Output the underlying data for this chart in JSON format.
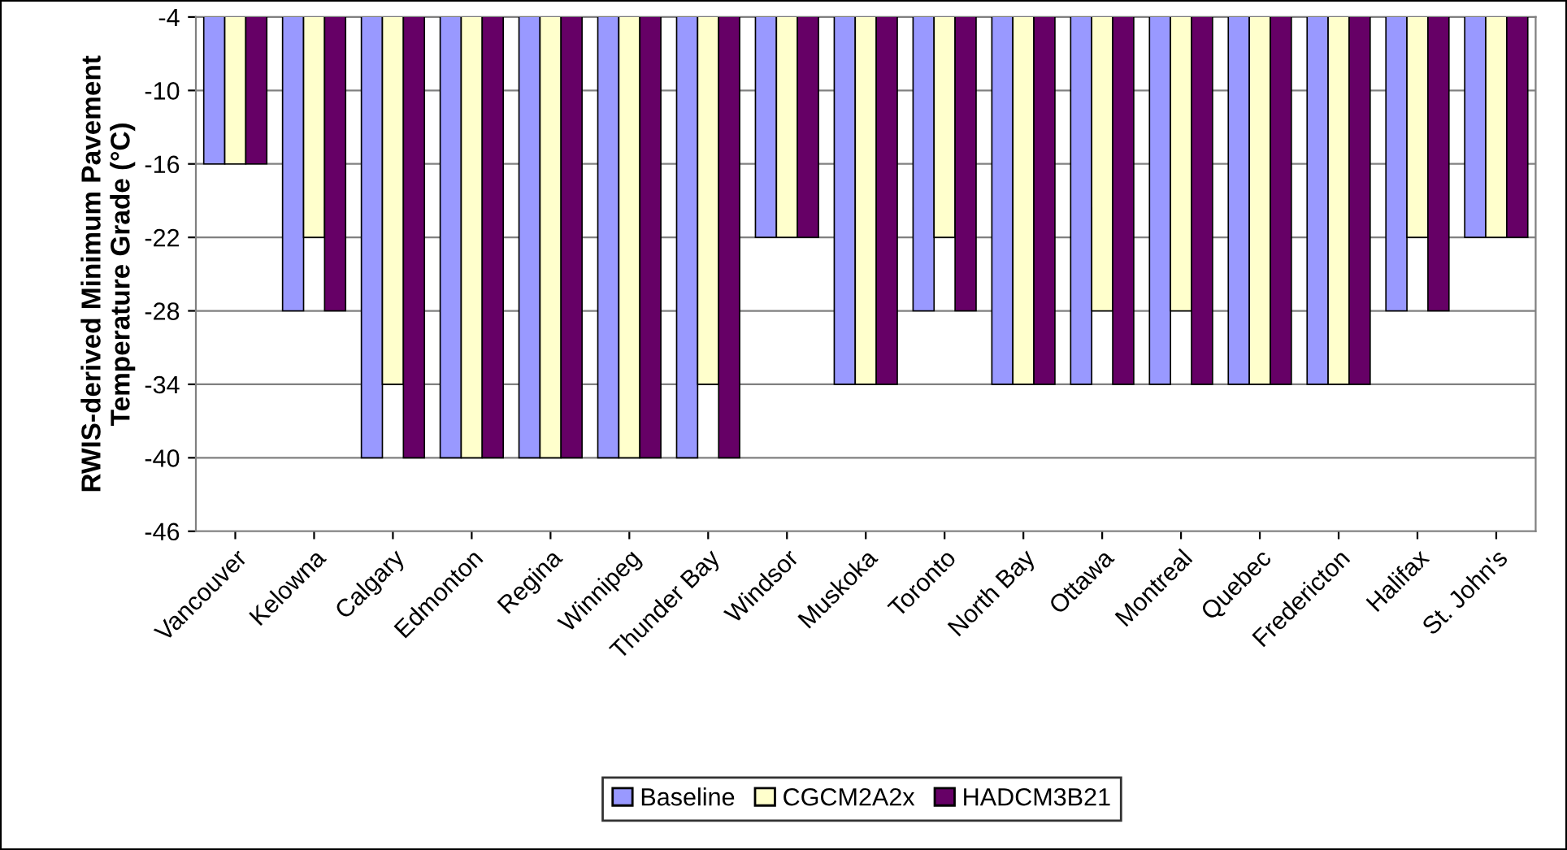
{
  "chart_data": {
    "type": "bar",
    "ylabel": "RWIS-derived Minimum Pavement\nTemperature Grade (°C)",
    "categories": [
      "Vancouver",
      "Kelowna",
      "Calgary",
      "Edmonton",
      "Regina",
      "Winnipeg",
      "Thunder Bay",
      "Windsor",
      "Muskoka",
      "Toronto",
      "North Bay",
      "Ottawa",
      "Montreal",
      "Quebec",
      "Fredericton",
      "Halifax",
      "St. John's"
    ],
    "series": [
      {
        "name": "Baseline",
        "color": "#9999ff",
        "values": [
          -16,
          -28,
          -40,
          -40,
          -40,
          -40,
          -40,
          -22,
          -34,
          -28,
          -34,
          -34,
          -34,
          -34,
          -34,
          -28,
          -22
        ]
      },
      {
        "name": "CGCM2A2x",
        "color": "#ffffcc",
        "values": [
          -16,
          -22,
          -34,
          -40,
          -40,
          -40,
          -34,
          -22,
          -34,
          -22,
          -34,
          -28,
          -28,
          -34,
          -34,
          -22,
          -22
        ]
      },
      {
        "name": "HADCM3B21",
        "color": "#660066",
        "values": [
          -16,
          -28,
          -40,
          -40,
          -40,
          -40,
          -40,
          -22,
          -34,
          -28,
          -34,
          -34,
          -34,
          -34,
          -34,
          -28,
          -22
        ]
      }
    ],
    "ylim": [
      -46,
      -4
    ],
    "yticks": [
      -4,
      -10,
      -16,
      -22,
      -28,
      -34,
      -40,
      -46
    ],
    "grid": "y",
    "legend": "bottom"
  }
}
